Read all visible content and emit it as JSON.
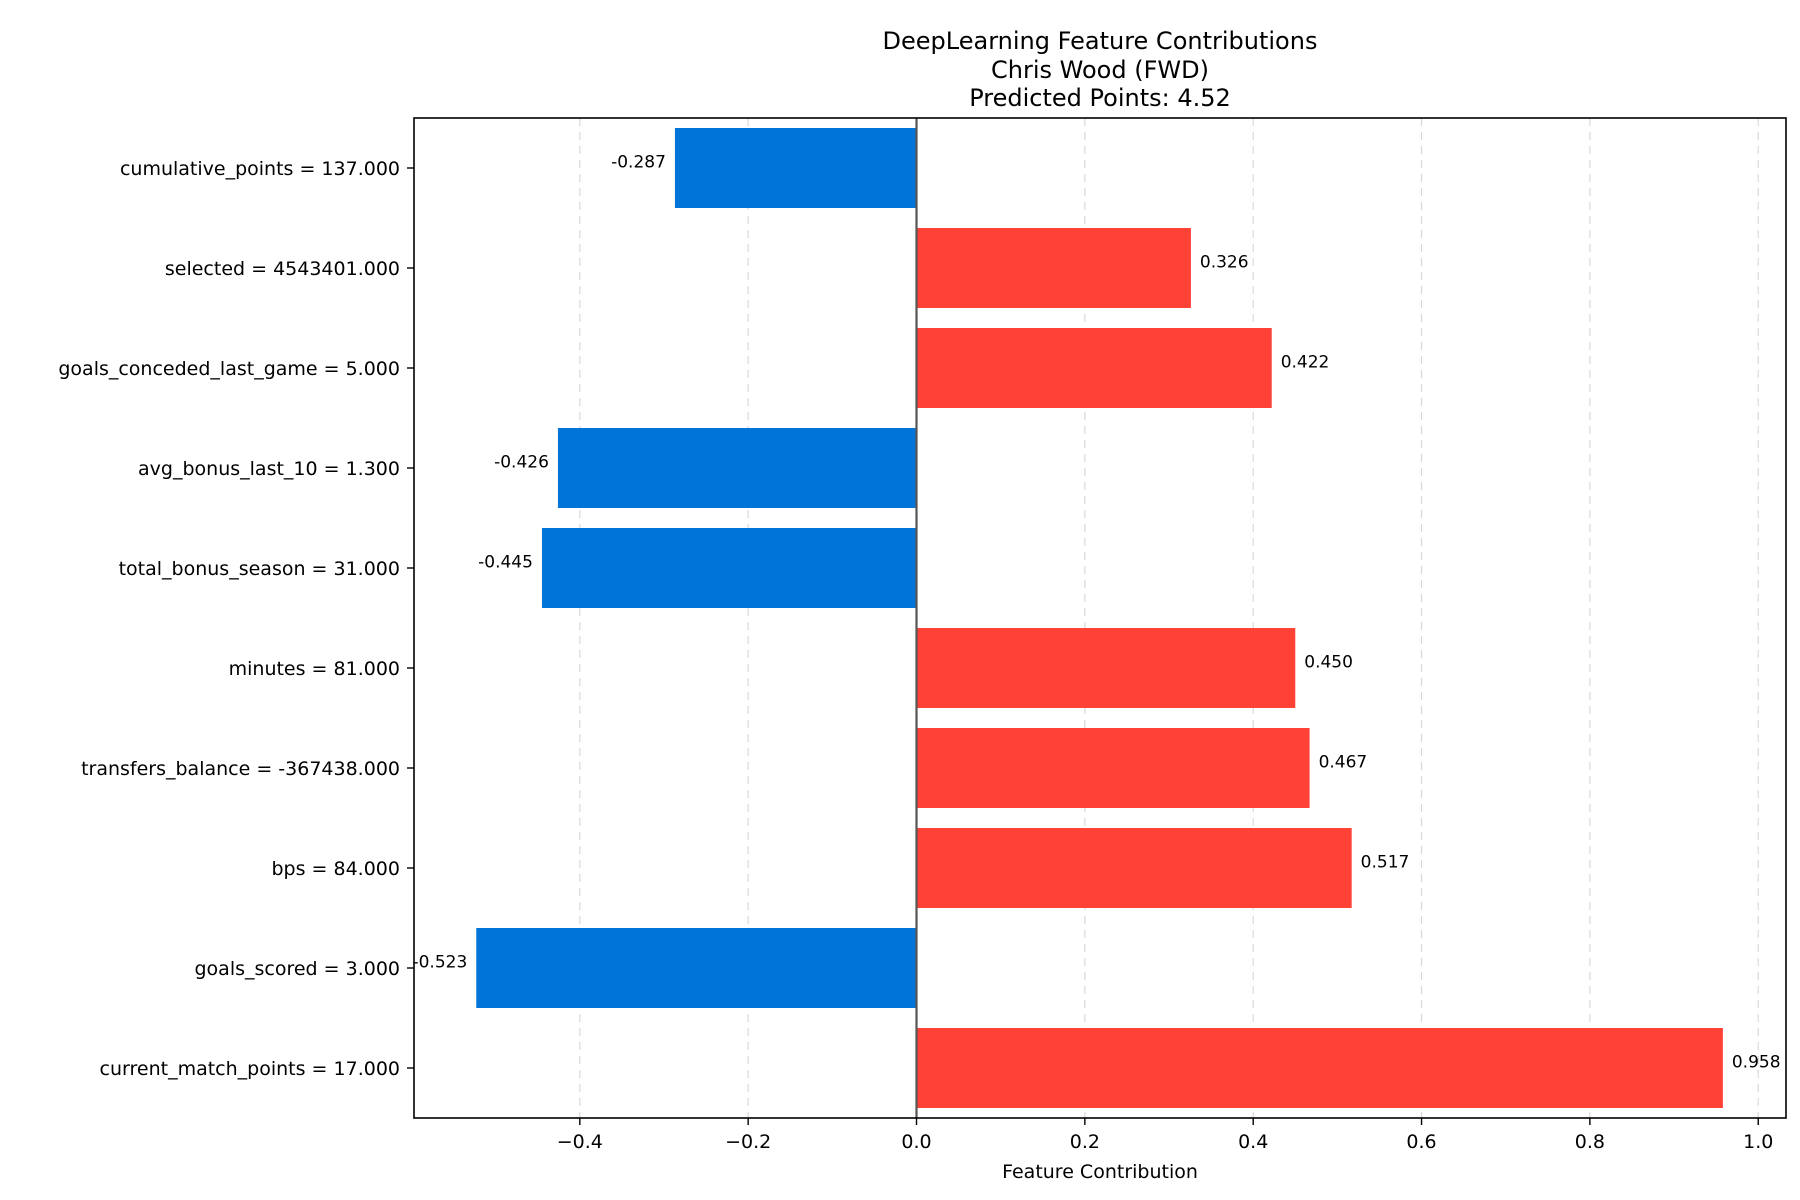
{
  "chart_data": {
    "type": "bar",
    "orientation": "horizontal",
    "title_lines": [
      "DeepLearning Feature Contributions",
      "Chris Wood (FWD)",
      "Predicted Points: 4.52"
    ],
    "xlabel": "Feature Contribution",
    "ylabel": "",
    "xlim": [
      -0.597,
      1.033
    ],
    "xticks": [
      -0.4,
      -0.2,
      0.0,
      0.2,
      0.4,
      0.6,
      0.8,
      1.0
    ],
    "xtick_labels": [
      "−0.4",
      "−0.2",
      "0.0",
      "0.2",
      "0.4",
      "0.6",
      "0.8",
      "1.0"
    ],
    "grid": "x-dashed",
    "zero_line": true,
    "categories": [
      "cumulative_points = 137.000",
      "selected = 4543401.000",
      "goals_conceded_last_game = 5.000",
      "avg_bonus_last_10 = 1.300",
      "total_bonus_season = 31.000",
      "minutes = 81.000",
      "transfers_balance = -367438.000",
      "bps = 84.000",
      "goals_scored = 3.000",
      "current_match_points = 17.000"
    ],
    "values": [
      -0.287,
      0.326,
      0.422,
      -0.426,
      -0.445,
      0.45,
      0.467,
      0.517,
      -0.523,
      0.958
    ],
    "value_labels": [
      "-0.287",
      "0.326",
      "0.422",
      "-0.426",
      "-0.445",
      "0.450",
      "0.467",
      "0.517",
      "-0.523",
      "0.958"
    ],
    "colors": {
      "positive": "#ff4136",
      "negative": "#0074d9",
      "zero_line": "#555555",
      "axis": "#000000"
    }
  }
}
